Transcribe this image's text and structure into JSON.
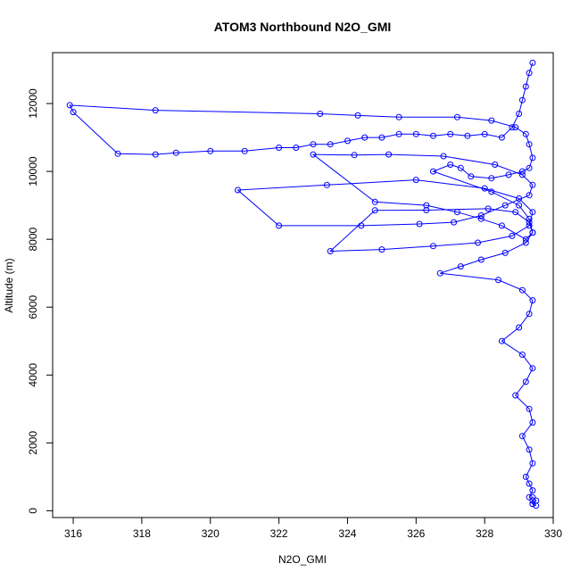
{
  "chart_data": {
    "type": "line",
    "title": "ATOM3 Northbound N2O_GMI",
    "xlabel": "N2O_GMI",
    "ylabel": "Altitude (m)",
    "xlim": [
      315.4,
      330.0
    ],
    "ylim": [
      -200,
      13500
    ],
    "xticks": [
      316,
      318,
      320,
      322,
      324,
      326,
      328,
      330
    ],
    "yticks": [
      0,
      2000,
      4000,
      6000,
      8000,
      10000,
      12000
    ],
    "grid": false,
    "legend": "none",
    "colors": {
      "series": "#0000ff"
    },
    "series": [
      {
        "marker": "open-circle",
        "x": [
          329.4,
          329.3,
          329.2,
          329.1,
          329.0,
          328.8,
          328.5,
          328.0,
          327.5,
          327.0,
          326.5,
          326.0,
          325.5,
          325.0,
          324.5,
          324.0,
          323.5,
          323.0,
          322.5,
          322.0,
          321.0,
          320.0,
          319.0,
          318.4,
          317.3,
          316.0,
          315.9,
          318.4,
          323.2,
          324.3,
          325.5,
          327.2,
          328.2,
          328.9,
          329.2,
          329.3,
          329.4,
          329.3,
          329.1,
          328.7,
          328.2,
          327.6,
          327.3,
          327.0,
          326.5,
          328.2,
          329.0,
          329.3,
          329.4,
          329.2,
          328.5,
          327.9,
          327.2,
          326.3,
          324.8,
          323.0,
          324.2,
          325.2,
          326.8,
          328.3,
          329.1,
          329.4,
          329.3,
          328.6,
          327.9,
          327.1,
          326.1,
          324.4,
          322.0,
          320.8,
          323.4,
          326.0,
          328.0,
          329.0,
          329.4,
          329.3,
          328.8,
          327.8,
          326.5,
          325.0,
          323.5,
          324.8,
          326.3,
          328.1,
          328.9,
          329.3,
          329.4,
          329.2,
          328.6,
          327.9,
          327.3,
          326.7,
          328.4,
          329.1,
          329.4,
          329.3,
          329.0,
          328.5,
          329.1,
          329.4,
          329.2,
          328.9,
          329.3,
          329.4,
          329.1,
          329.3,
          329.4,
          329.2,
          329.3,
          329.4,
          329.3,
          329.4,
          329.4,
          329.5,
          329.4,
          329.5,
          329.4
        ],
        "y": [
          13200,
          12900,
          12500,
          12100,
          11700,
          11300,
          11000,
          11100,
          11050,
          11100,
          11050,
          11100,
          11100,
          11000,
          11000,
          10900,
          10800,
          10800,
          10700,
          10700,
          10600,
          10600,
          10550,
          10500,
          10520,
          11750,
          11950,
          11800,
          11700,
          11650,
          11600,
          11600,
          11500,
          11300,
          11100,
          10800,
          10400,
          10100,
          10000,
          9900,
          9800,
          9850,
          10100,
          10200,
          10000,
          9400,
          9000,
          8600,
          8200,
          8000,
          8400,
          8600,
          8800,
          9000,
          9100,
          10500,
          10480,
          10500,
          10450,
          10200,
          9900,
          9600,
          9300,
          9000,
          8700,
          8500,
          8450,
          8400,
          8400,
          9450,
          9600,
          9750,
          9500,
          9200,
          8800,
          8400,
          8100,
          7900,
          7800,
          7700,
          7650,
          8850,
          8860,
          8900,
          8800,
          8500,
          8200,
          7900,
          7600,
          7400,
          7200,
          7000,
          6800,
          6500,
          6200,
          5800,
          5400,
          5000,
          4600,
          4200,
          3800,
          3400,
          3000,
          2600,
          2200,
          1800,
          1400,
          1000,
          800,
          600,
          400,
          300,
          200,
          150,
          200,
          300,
          400
        ]
      }
    ]
  }
}
